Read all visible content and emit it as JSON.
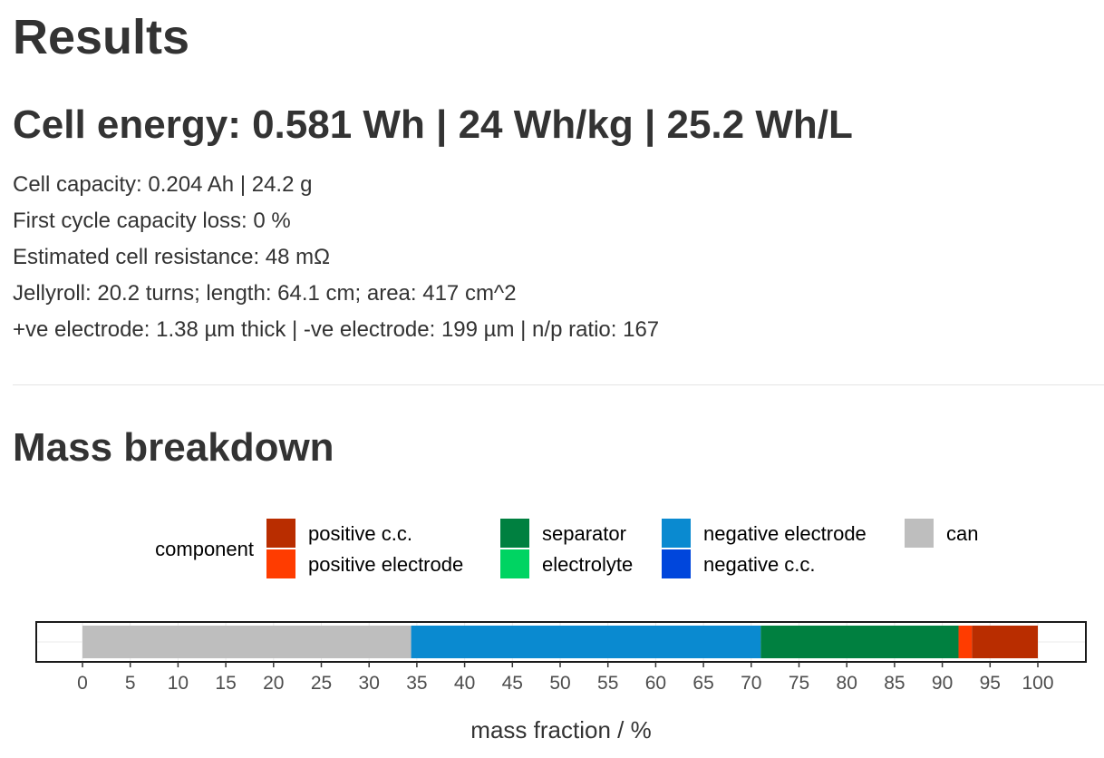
{
  "page": {
    "title": "Results",
    "energy_heading": "Cell energy: 0.581 Wh | 24 Wh/kg | 25.2 Wh/L",
    "stats": [
      "Cell capacity: 0.204 Ah | 24.2 g",
      "First cycle capacity loss: 0 %",
      "Estimated cell resistance: 48 mΩ",
      "Jellyroll: 20.2 turns; length: 64.1 cm; area: 417 cm^2",
      "+ve electrode: 1.38 µm thick | -ve electrode: 199 µm | n/p ratio: 167"
    ],
    "mass_heading": "Mass breakdown"
  },
  "chart_data": {
    "type": "bar",
    "orientation": "horizontal",
    "stacked": true,
    "xlabel": "mass fraction / %",
    "xlim": [
      0,
      100
    ],
    "xticks": [
      "0",
      "5",
      "10",
      "15",
      "20",
      "25",
      "30",
      "35",
      "40",
      "45",
      "50",
      "55",
      "60",
      "65",
      "70",
      "75",
      "80",
      "85",
      "90",
      "95",
      "100"
    ],
    "grid": true,
    "legend_title": "component",
    "legend_position": "top",
    "series": [
      {
        "name": "can",
        "value": 34.4,
        "color": "#bebebe"
      },
      {
        "name": "negative c.c.",
        "value": 0.0,
        "color": "#0046dc"
      },
      {
        "name": "negative electrode",
        "value": 36.6,
        "color": "#0a8ad0"
      },
      {
        "name": "electrolyte",
        "value": 0.0,
        "color": "#00d462"
      },
      {
        "name": "separator",
        "value": 20.7,
        "color": "#008040"
      },
      {
        "name": "positive electrode",
        "value": 1.4,
        "color": "#ff3c00"
      },
      {
        "name": "positive c.c.",
        "value": 6.9,
        "color": "#b92d00"
      }
    ],
    "legend_order": [
      "positive c.c.",
      "positive electrode",
      "separator",
      "electrolyte",
      "negative electrode",
      "negative c.c.",
      "can"
    ]
  }
}
